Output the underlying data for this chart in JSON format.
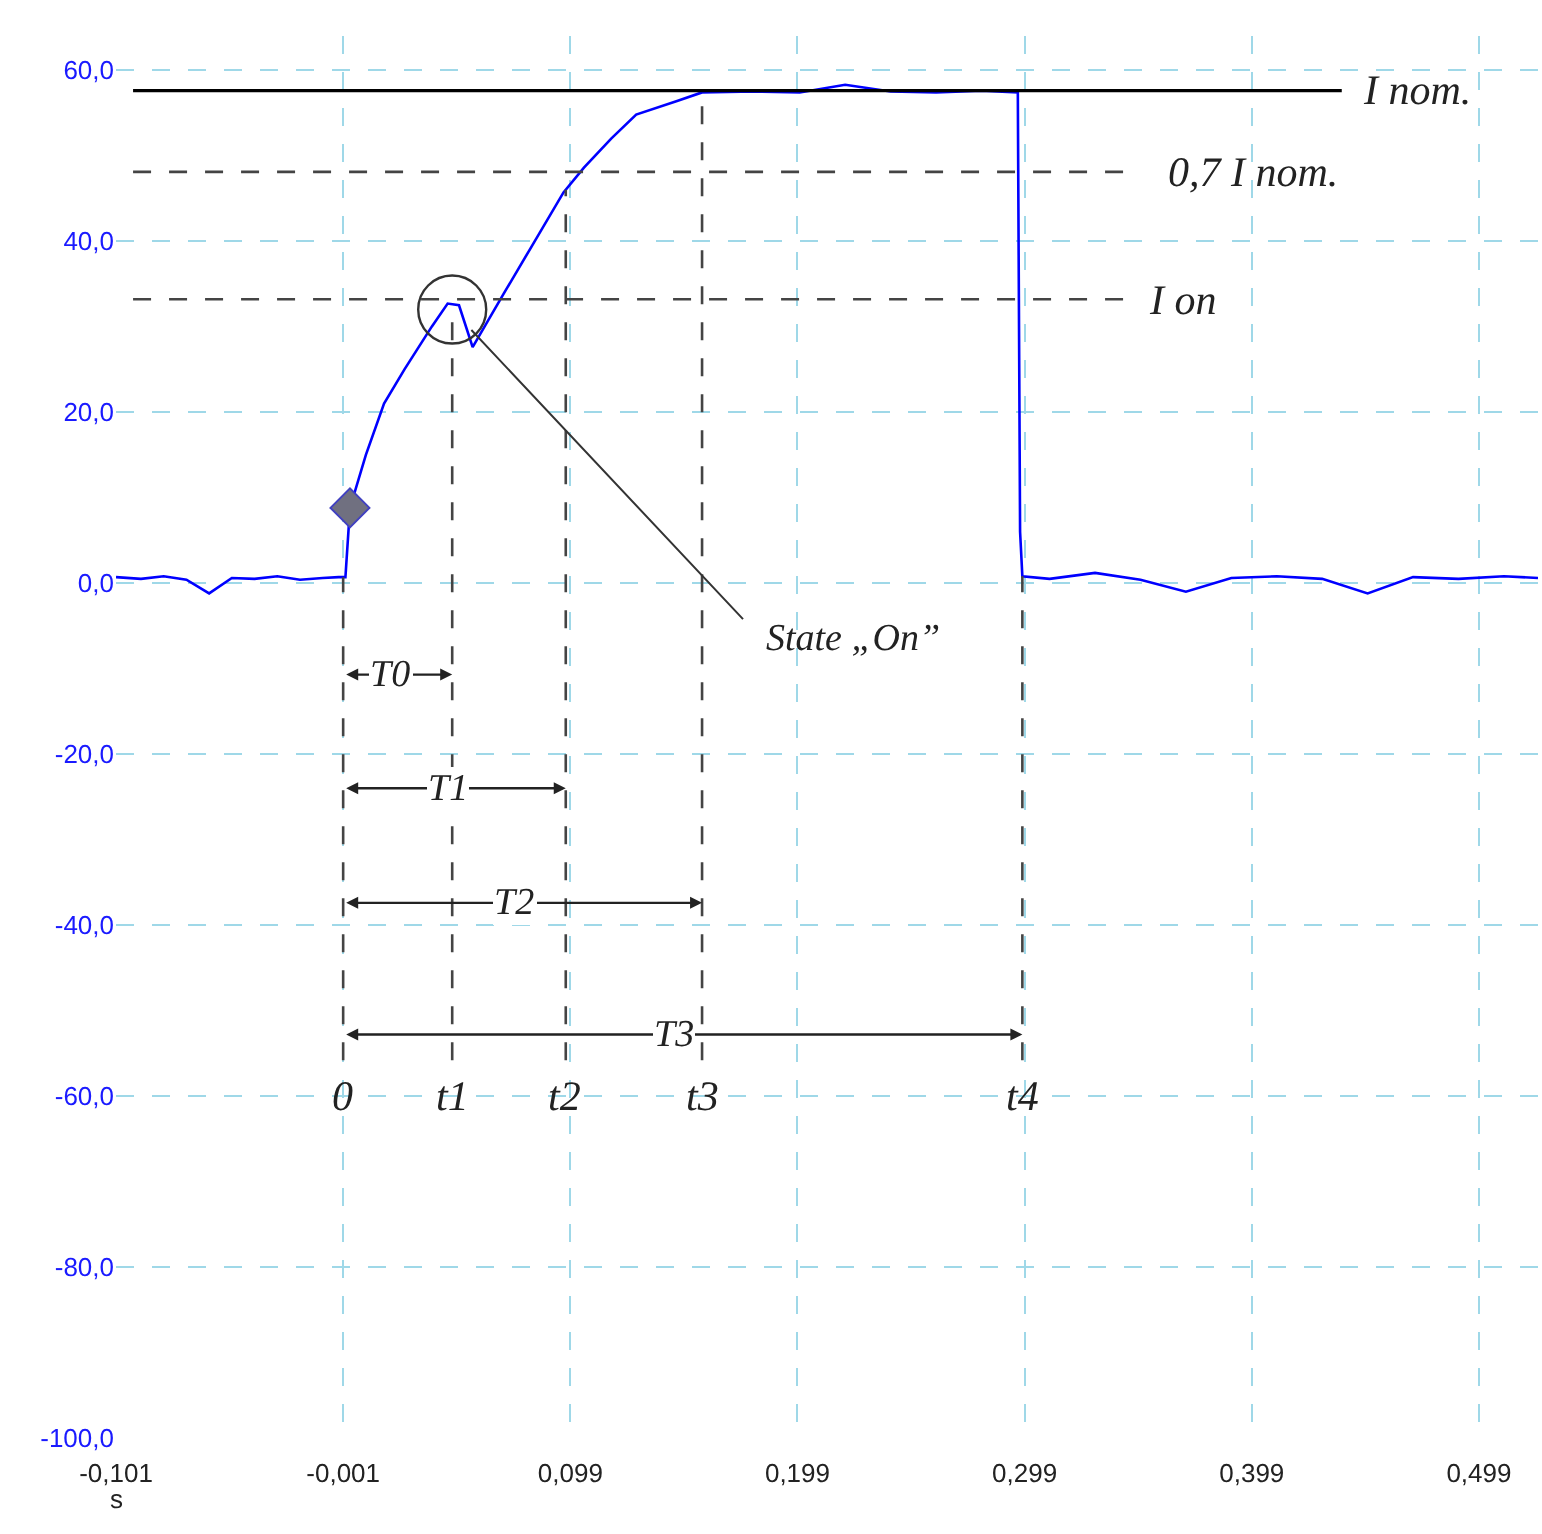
{
  "chart_data": {
    "type": "line",
    "xlabel": "s",
    "xlim": [
      -0.101,
      0.525
    ],
    "ylim": [
      -100,
      64
    ],
    "xticks": [
      {
        "value": -0.101,
        "label": "-0,101"
      },
      {
        "value": -0.001,
        "label": "-0,001"
      },
      {
        "value": 0.099,
        "label": "0,099"
      },
      {
        "value": 0.199,
        "label": "0,199"
      },
      {
        "value": 0.299,
        "label": "0,299"
      },
      {
        "value": 0.399,
        "label": "0,399"
      },
      {
        "value": 0.499,
        "label": "0,499"
      }
    ],
    "yticks": [
      {
        "value": -100,
        "label": "-100,0"
      },
      {
        "value": -80,
        "label": "-80,0"
      },
      {
        "value": -60,
        "label": "-60,0"
      },
      {
        "value": -40,
        "label": "-40,0"
      },
      {
        "value": -20,
        "label": "-20,0"
      },
      {
        "value": 0,
        "label": "0,0"
      },
      {
        "value": 20,
        "label": "20,0"
      },
      {
        "value": 40,
        "label": "40,0"
      },
      {
        "value": 60,
        "label": "60,0"
      }
    ],
    "grid": true,
    "marker": "none",
    "line_style": "solid",
    "series": [
      {
        "color": "#0000ff",
        "x": [
          -0.101,
          -0.09,
          -0.08,
          -0.07,
          -0.06,
          -0.05,
          -0.04,
          -0.03,
          -0.02,
          -0.01,
          -0.003,
          0.0,
          0.002,
          0.009,
          0.017,
          0.026,
          0.038,
          0.045,
          0.05,
          0.056,
          0.07,
          0.082,
          0.096,
          0.105,
          0.117,
          0.128,
          0.146,
          0.157,
          0.18,
          0.2,
          0.22,
          0.24,
          0.26,
          0.28,
          0.296,
          0.297,
          0.298,
          0.31,
          0.33,
          0.35,
          0.37,
          0.39,
          0.41,
          0.43,
          0.45,
          0.47,
          0.49,
          0.51,
          0.525
        ],
        "values": [
          0.7,
          0.5,
          0.8,
          0.4,
          -1.2,
          0.6,
          0.5,
          0.8,
          0.4,
          0.6,
          0.7,
          0.7,
          8.8,
          15,
          21,
          25,
          30,
          32.7,
          32.5,
          27.6,
          34,
          39.4,
          45.7,
          48.6,
          52,
          54.8,
          56.4,
          57.4,
          57.5,
          57.4,
          58.3,
          57.5,
          57.4,
          57.6,
          57.4,
          6,
          0.8,
          0.5,
          1.2,
          0.4,
          -1,
          0.6,
          0.8,
          0.5,
          -1.2,
          0.7,
          0.5,
          0.8,
          0.6
        ]
      },
      {
        "type": "scatter",
        "marker": "diamond",
        "color": "#707080",
        "x": [
          0.002
        ],
        "values": [
          8.8
        ]
      }
    ],
    "ref_lines": [
      {
        "axis": "y",
        "value": 57.6,
        "label": "I nom.",
        "color": "#000000",
        "line_style": "solid"
      },
      {
        "axis": "y",
        "value": 48.1,
        "label": "0,7 I nom.",
        "color": "#444444",
        "line_style": "dashed"
      },
      {
        "axis": "y",
        "value": 33.2,
        "label": "I on",
        "color": "#444444",
        "line_style": "dashed"
      },
      {
        "axis": "x",
        "value": -0.001,
        "label": "0",
        "color": "#444444",
        "line_style": "dashed"
      },
      {
        "axis": "x",
        "value": 0.047,
        "label": "t1",
        "color": "#444444",
        "line_style": "dashed"
      },
      {
        "axis": "x",
        "value": 0.097,
        "label": "t2",
        "color": "#444444",
        "line_style": "dashed"
      },
      {
        "axis": "x",
        "value": 0.157,
        "label": "t3",
        "color": "#444444",
        "line_style": "dashed"
      },
      {
        "axis": "x",
        "value": 0.298,
        "label": "t4",
        "color": "#444444",
        "line_style": "dashed"
      }
    ],
    "annotations": [
      {
        "text": "T0",
        "x": 0.02,
        "y": -10.7
      },
      {
        "text": "T1",
        "x": 0.045,
        "y": -24
      },
      {
        "text": "T2",
        "x": 0.075,
        "y": -37.4
      },
      {
        "text": "T3",
        "x": 0.145,
        "y": -52.8
      },
      {
        "text": "State „On”",
        "x": 0.047,
        "y": 32
      }
    ]
  }
}
